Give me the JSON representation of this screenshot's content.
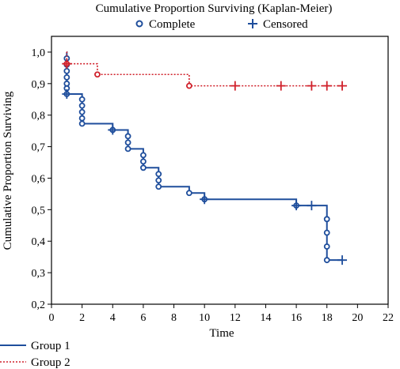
{
  "chart_data": {
    "type": "line",
    "subtype": "kaplan-meier step plot",
    "title": "Cumulative Proportion Surviving (Kaplan-Meier)",
    "xlabel": "Time",
    "ylabel": "Cumulative Proportion Surviving",
    "xlim": [
      0,
      22
    ],
    "ylim": [
      0.2,
      1.05
    ],
    "x_ticks": [
      "0",
      "2",
      "4",
      "6",
      "8",
      "10",
      "12",
      "14",
      "16",
      "18",
      "20",
      "22"
    ],
    "y_ticks": [
      "0,2",
      "0,3",
      "0,4",
      "0,5",
      "0,6",
      "0,7",
      "0,8",
      "0,9",
      "1,0"
    ],
    "grid": false,
    "marker_legend": {
      "position": "top",
      "complete_label": "Complete",
      "censored_label": "Censored"
    },
    "series_legend_position": "bottom-left",
    "series": [
      {
        "name": "Group 1",
        "color": "#1f4e9c",
        "line_style": "solid",
        "steps": [
          [
            0.98,
            1.0
          ],
          [
            1,
            0.867
          ],
          [
            2,
            0.773
          ],
          [
            4,
            0.753
          ],
          [
            5,
            0.693
          ],
          [
            6,
            0.633
          ],
          [
            7,
            0.573
          ],
          [
            9,
            0.553
          ],
          [
            10,
            0.533
          ],
          [
            16,
            0.513
          ],
          [
            18,
            0.34
          ],
          [
            19,
            0.34
          ]
        ],
        "complete_markers": [
          [
            1,
            0.98
          ],
          [
            1,
            0.96
          ],
          [
            1,
            0.94
          ],
          [
            1,
            0.92
          ],
          [
            1,
            0.9
          ],
          [
            1,
            0.885
          ],
          [
            1,
            0.867
          ],
          [
            2,
            0.85
          ],
          [
            2,
            0.83
          ],
          [
            2,
            0.81
          ],
          [
            2,
            0.79
          ],
          [
            2,
            0.773
          ],
          [
            4,
            0.753
          ],
          [
            5,
            0.733
          ],
          [
            5,
            0.713
          ],
          [
            5,
            0.693
          ],
          [
            6,
            0.673
          ],
          [
            6,
            0.653
          ],
          [
            6,
            0.633
          ],
          [
            7,
            0.613
          ],
          [
            7,
            0.593
          ],
          [
            7,
            0.573
          ],
          [
            9,
            0.553
          ],
          [
            10,
            0.533
          ],
          [
            16,
            0.513
          ],
          [
            18,
            0.47
          ],
          [
            18,
            0.427
          ],
          [
            18,
            0.383
          ],
          [
            18,
            0.34
          ]
        ],
        "censored_markers": [
          [
            1,
            0.867
          ],
          [
            4,
            0.753
          ],
          [
            10,
            0.533
          ],
          [
            16,
            0.513
          ],
          [
            17,
            0.513
          ],
          [
            19,
            0.34
          ]
        ]
      },
      {
        "name": "Group 2",
        "color": "#d0212b",
        "line_style": "dotted",
        "steps": [
          [
            0.98,
            1.0
          ],
          [
            1,
            0.963
          ],
          [
            3,
            0.929
          ],
          [
            9,
            0.893
          ],
          [
            19,
            0.893
          ]
        ],
        "complete_markers": [
          [
            1,
            0.963
          ],
          [
            3,
            0.929
          ],
          [
            9,
            0.893
          ]
        ],
        "censored_markers": [
          [
            1,
            0.963
          ],
          [
            12,
            0.893
          ],
          [
            15,
            0.893
          ],
          [
            17,
            0.893
          ],
          [
            18,
            0.893
          ],
          [
            19,
            0.893
          ]
        ]
      }
    ]
  }
}
